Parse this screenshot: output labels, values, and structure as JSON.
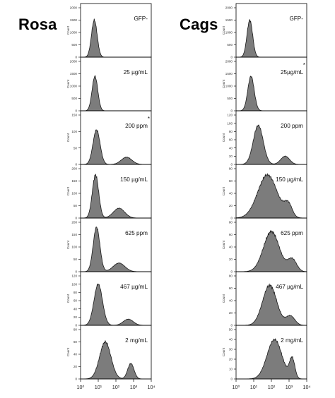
{
  "titles": {
    "left": "Rosa",
    "right": "Cags"
  },
  "chart_data": {
    "type": "area",
    "xscale": "log",
    "xlim": [
      1,
      10000
    ],
    "x_tick_labels": [
      "10⁰",
      "10¹",
      "10²",
      "10³",
      "10⁴"
    ],
    "ylabel": "Count",
    "columns": [
      {
        "name": "Rosa",
        "panels": [
          {
            "label": "GFP-",
            "y_ticks": [
              0,
              500,
              1000,
              1500,
              2000
            ],
            "peaks": [
              {
                "center": 6,
                "amp": 1500,
                "width": 0.16
              }
            ]
          },
          {
            "label": "25 µg/mL",
            "y_ticks": [
              0,
              500,
              1000,
              1500,
              2000
            ],
            "peaks": [
              {
                "center": 6.5,
                "amp": 1400,
                "width": 0.16
              }
            ]
          },
          {
            "label": "200 ppm",
            "asterisk": "*",
            "y_ticks": [
              0,
              50,
              100,
              150
            ],
            "peaks": [
              {
                "center": 8,
                "amp": 105,
                "width": 0.2
              },
              {
                "center": 400,
                "amp": 22,
                "width": 0.3
              }
            ]
          },
          {
            "label": "150 µg/mL",
            "y_ticks": [
              0,
              50,
              100,
              150,
              200
            ],
            "peaks": [
              {
                "center": 7,
                "amp": 175,
                "width": 0.18
              },
              {
                "center": 150,
                "amp": 40,
                "width": 0.32
              }
            ]
          },
          {
            "label": "625 ppm",
            "y_ticks": [
              0,
              50,
              100,
              150,
              200
            ],
            "peaks": [
              {
                "center": 8,
                "amp": 180,
                "width": 0.19
              },
              {
                "center": 150,
                "amp": 35,
                "width": 0.33
              }
            ]
          },
          {
            "label": "467 µg/mL",
            "y_ticks": [
              0,
              20,
              40,
              60,
              80,
              100,
              120
            ],
            "peaks": [
              {
                "center": 10,
                "amp": 100,
                "width": 0.24
              },
              {
                "center": 500,
                "amp": 15,
                "width": 0.28
              }
            ]
          },
          {
            "label": "2 mg/mL",
            "y_ticks": [
              0,
              20,
              40,
              60,
              80
            ],
            "peaks": [
              {
                "center": 25,
                "amp": 60,
                "width": 0.32
              },
              {
                "center": 700,
                "amp": 25,
                "width": 0.18
              }
            ]
          }
        ]
      },
      {
        "name": "Cags",
        "panels": [
          {
            "label": "GFP-",
            "y_ticks": [
              0,
              500,
              1000,
              1500,
              2000
            ],
            "peaks": [
              {
                "center": 6,
                "amp": 1500,
                "width": 0.16
              }
            ]
          },
          {
            "label": "25µg/mL",
            "asterisk": "*",
            "y_ticks": [
              0,
              500,
              1000,
              1500,
              2000
            ],
            "peaks": [
              {
                "center": 7,
                "amp": 1400,
                "width": 0.18
              }
            ]
          },
          {
            "label": "200 ppm",
            "y_ticks": [
              0,
              20,
              40,
              60,
              80,
              100,
              120
            ],
            "peaks": [
              {
                "center": 18,
                "amp": 95,
                "width": 0.28
              },
              {
                "center": 600,
                "amp": 20,
                "width": 0.25
              }
            ]
          },
          {
            "label": "150 µg/mL",
            "y_ticks": [
              0,
              20,
              40,
              60,
              80
            ],
            "peaks": [
              {
                "center": 60,
                "amp": 70,
                "width": 0.55
              },
              {
                "center": 900,
                "amp": 20,
                "width": 0.22
              }
            ]
          },
          {
            "label": "625 ppm",
            "y_ticks": [
              0,
              20,
              40,
              60,
              80
            ],
            "peaks": [
              {
                "center": 100,
                "amp": 65,
                "width": 0.45
              },
              {
                "center": 1500,
                "amp": 20,
                "width": 0.25
              }
            ]
          },
          {
            "label": "467 µg/mL",
            "y_ticks": [
              0,
              20,
              40,
              60,
              80
            ],
            "peaks": [
              {
                "center": 80,
                "amp": 65,
                "width": 0.4
              },
              {
                "center": 1200,
                "amp": 15,
                "width": 0.25
              }
            ]
          },
          {
            "label": "2 mg/mL",
            "y_ticks": [
              0,
              10,
              20,
              30,
              40,
              50
            ],
            "peaks": [
              {
                "center": 150,
                "amp": 40,
                "width": 0.42
              },
              {
                "center": 1500,
                "amp": 20,
                "width": 0.15
              }
            ]
          }
        ]
      }
    ],
    "style": {
      "fill": "#7c7c7c",
      "stroke": "#1a1a1a",
      "frame": "#000000"
    }
  }
}
